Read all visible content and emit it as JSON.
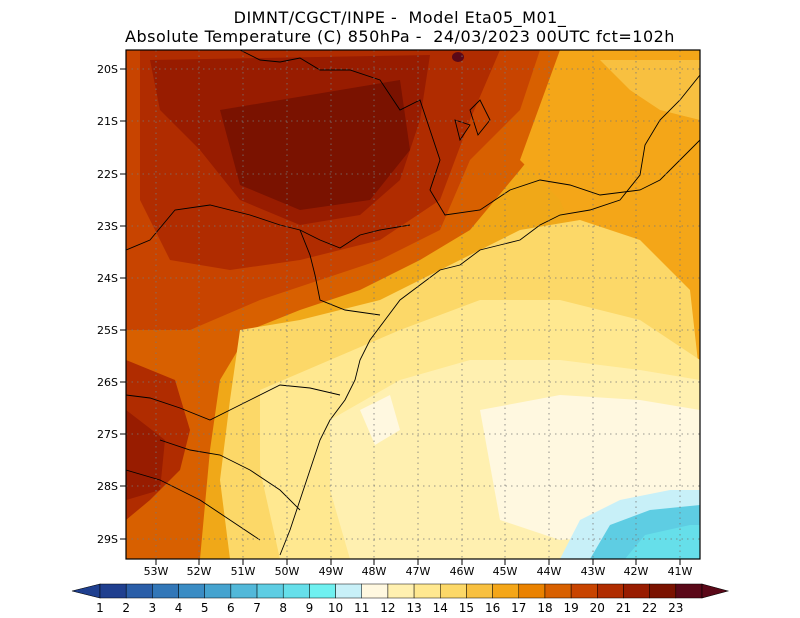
{
  "header": {
    "line1": "DIMNT/CGCT/INPE -  Model Eta05_M01_",
    "line2": "Absolute Temperature (C) 850hPa -  24/03/2023 00UTC fct=102h"
  },
  "map": {
    "lat_labels": [
      "20S",
      "21S",
      "22S",
      "23S",
      "24S",
      "25S",
      "26S",
      "27S",
      "28S",
      "29S"
    ],
    "lon_labels": [
      "53W",
      "52W",
      "51W",
      "50W",
      "49W",
      "48W",
      "47W",
      "46W",
      "45W",
      "44W",
      "43W",
      "42W",
      "41W"
    ]
  },
  "colorbar": {
    "labels": [
      "1",
      "2",
      "3",
      "4",
      "5",
      "6",
      "7",
      "8",
      "9",
      "10",
      "11",
      "12",
      "13",
      "14",
      "15",
      "16",
      "17",
      "18",
      "19",
      "20",
      "21",
      "22",
      "23"
    ],
    "colors": [
      "#1f3f8f",
      "#2a5ea8",
      "#3277b8",
      "#3a8cc4",
      "#45a3cf",
      "#52b8d9",
      "#5ecde3",
      "#66dfea",
      "#6ff0f0",
      "#c8f0f8",
      "#fff8e0",
      "#fff0b0",
      "#ffe890",
      "#fcd868",
      "#f8c040",
      "#f4a618",
      "#ea8200",
      "#d86000",
      "#c84400",
      "#b02c00",
      "#981c00",
      "#7a1200",
      "#5a0818"
    ]
  }
}
